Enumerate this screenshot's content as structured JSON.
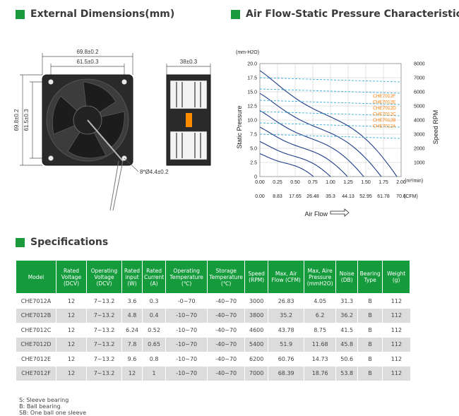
{
  "dimensions": {
    "title": "External Dimensions(mm)",
    "width_outer": "69.8±0.2",
    "width_hole": "61.5±0.3",
    "height_outer": "69.8±0.2",
    "height_hole": "61.5±0.3",
    "depth": "38±0.3",
    "holes": "8*Ø4.4±0.2"
  },
  "airflow": {
    "title": "Air Flow-Static Pressure Characteristics",
    "y_unit": "(mm-H2O)",
    "y_label": "Static Pressure",
    "y2_label": "Speed RPM",
    "x_label": "Air Flow",
    "x1_unit": "(m³/min)",
    "x2_unit": "(CFM)",
    "legend": [
      "CHE7012F",
      "CHE7012E",
      "CHE7012D",
      "CHE7012C",
      "CHE7012B",
      "CHE7012A"
    ]
  },
  "chart_data": {
    "type": "line",
    "ylabel": "Static Pressure",
    "y2label": "Speed RPM",
    "xlabel": "Air Flow",
    "ylim": [
      0,
      20
    ],
    "y2lim": [
      0,
      8000
    ],
    "y_ticks": [
      "0",
      "2.5",
      "5.0",
      "7.5",
      "10.0",
      "12.5",
      "15.0",
      "17.5",
      "20.0"
    ],
    "y2_ticks": [
      "1000",
      "2000",
      "3000",
      "4000",
      "5000",
      "6000",
      "7000",
      "8000"
    ],
    "x_ticks": [
      "0.00",
      "0.25",
      "0.50",
      "0.75",
      "1.00",
      "1.25",
      "1.50",
      "1.75",
      "2.00"
    ],
    "x2_ticks": [
      "0.00",
      "8.83",
      "17.65",
      "26.48",
      "35.3",
      "44.13",
      "52.95",
      "61.78",
      "70.6"
    ],
    "xlim": [
      0,
      2
    ],
    "series": [
      {
        "name": "CHE7012F",
        "max_pressure": 18.76,
        "max_flow": 1.94,
        "rpm": 7000
      },
      {
        "name": "CHE7012E",
        "max_pressure": 14.73,
        "max_flow": 1.72,
        "rpm": 6200
      },
      {
        "name": "CHE7012D",
        "max_pressure": 11.68,
        "max_flow": 1.47,
        "rpm": 5400
      },
      {
        "name": "CHE7012C",
        "max_pressure": 8.75,
        "max_flow": 1.24,
        "rpm": 4600
      },
      {
        "name": "CHE7012B",
        "max_pressure": 6.2,
        "max_flow": 1.0,
        "rpm": 3800
      },
      {
        "name": "CHE7012A",
        "max_pressure": 4.05,
        "max_flow": 0.76,
        "rpm": 3000
      }
    ]
  },
  "specs": {
    "title": "Specifications",
    "headers": [
      "Model",
      "Rated Voltage (DCV)",
      "Operating Voltage (DCV)",
      "Rated input (W)",
      "Rated Current (A)",
      "Operating Temperature (℃)",
      "Storage Temperature (℃)",
      "Speed (RPM)",
      "Max, Air Flow (CFM)",
      "Max, Aire Pressure (mmH2O)",
      "Noise (DB)",
      "Bearing Type",
      "Weight (g)"
    ],
    "rows": [
      [
        "CHE7012A",
        "12",
        "7~13.2",
        "3.6",
        "0.3",
        "-0~70",
        "-40~70",
        "3000",
        "26.83",
        "4.05",
        "31.3",
        "B",
        "112"
      ],
      [
        "CHE7012B",
        "12",
        "7~13.2",
        "4.8",
        "0.4",
        "-10~70",
        "-40~70",
        "3800",
        "35.2",
        "6.2",
        "36.2",
        "B",
        "112"
      ],
      [
        "CHE7012C",
        "12",
        "7~13.2",
        "6.24",
        "0.52",
        "-10~70",
        "-40~70",
        "4600",
        "43.78",
        "8.75",
        "41.5",
        "B",
        "112"
      ],
      [
        "CHE7012D",
        "12",
        "7~13.2",
        "7.8",
        "0.65",
        "-10~70",
        "-40~70",
        "5400",
        "51.9",
        "11.68",
        "45.8",
        "B",
        "112"
      ],
      [
        "CHE7012E",
        "12",
        "7~13.2",
        "9.6",
        "0.8",
        "-10~70",
        "-40~70",
        "6200",
        "60.76",
        "14.73",
        "50.6",
        "B",
        "112"
      ],
      [
        "CHE7012F",
        "12",
        "7~13.2",
        "12",
        "1",
        "-10~70",
        "-40~70",
        "7000",
        "68.39",
        "18.76",
        "53.8",
        "B",
        "112"
      ]
    ]
  },
  "footnote": [
    "S: Sleeve bearing",
    "B: Ball bearing",
    "SB: One ball one sleeve"
  ],
  "colors": {
    "accent": "#159a3c",
    "curve": "#1f3c88",
    "legend": "#ff7a00",
    "highlight": "#3ab0d8"
  }
}
